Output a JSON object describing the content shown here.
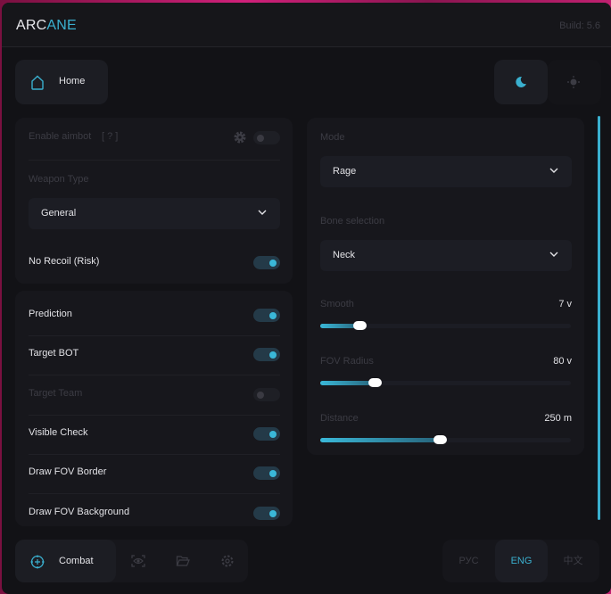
{
  "header": {
    "logo_a": "ARC",
    "logo_b": "ANE",
    "build": "Build: 5.6"
  },
  "top": {
    "home_label": "Home",
    "theme": "dark"
  },
  "aim_panel": {
    "enable_label": "Enable aimbot",
    "help": "[ ? ]",
    "enabled": false,
    "weapon_type_label": "Weapon Type",
    "weapon_type": "General",
    "no_recoil_label": "No Recoil (Risk)",
    "no_recoil": true
  },
  "options": [
    {
      "label": "Prediction",
      "on": true
    },
    {
      "label": "Target BOT",
      "on": true
    },
    {
      "label": "Target Team",
      "on": false,
      "disabled": true
    },
    {
      "label": "Visible Check",
      "on": true
    },
    {
      "label": "Draw FOV Border",
      "on": true
    },
    {
      "label": "Draw FOV Background",
      "on": true
    }
  ],
  "right": {
    "mode_label": "Mode",
    "mode": "Rage",
    "bone_label": "Bone selection",
    "bone": "Neck",
    "sliders": [
      {
        "label": "Smooth",
        "value": "7 v",
        "percent": 16
      },
      {
        "label": "FOV Radius",
        "value": "80 v",
        "percent": 22
      },
      {
        "label": "Distance",
        "value": "250 m",
        "percent": 48
      }
    ]
  },
  "nav": {
    "combat": "Combat",
    "items": [
      "visuals-icon",
      "folder-icon",
      "settings-icon"
    ]
  },
  "lang": {
    "items": [
      "РУС",
      "ENG",
      "中文"
    ],
    "active": "ENG"
  },
  "colors": {
    "accent": "#3ab0cf",
    "bg": "#121216",
    "panel": "#17171c"
  }
}
